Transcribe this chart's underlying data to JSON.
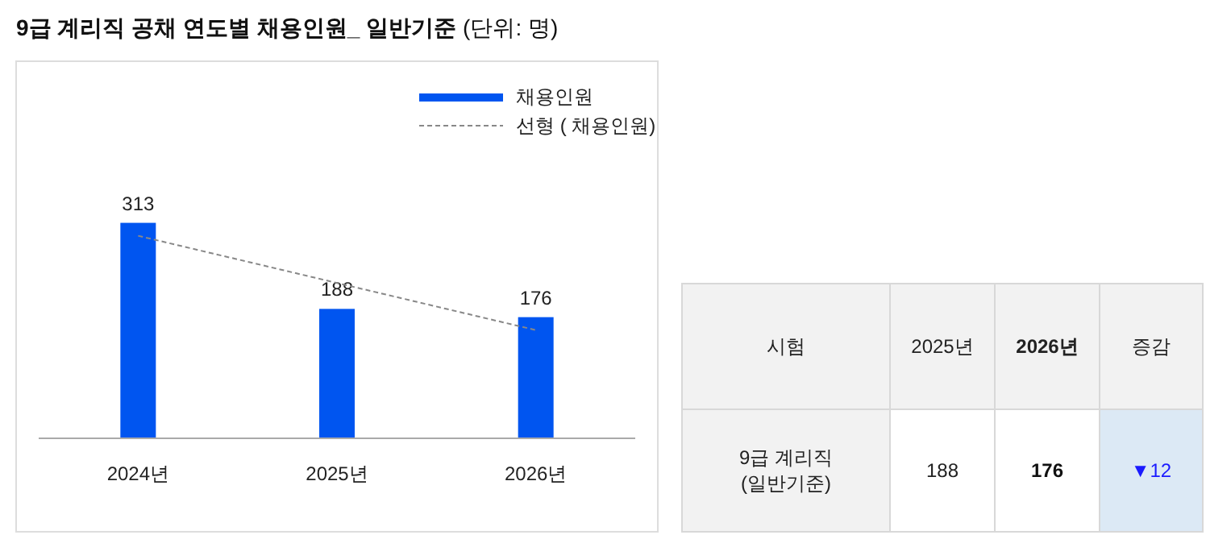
{
  "chart_data": [
    {
      "type": "bar",
      "title": "9급 계리직 공채 연도별 채용인원_ 일반기준",
      "subtitle": "(단위: 명)",
      "categories": [
        "2024년",
        "2025년",
        "2026년"
      ],
      "legend": "top right",
      "series": [
        {
          "name": "채용인원",
          "type": "bar",
          "color": "#0055f0",
          "values": [
            313,
            188,
            176
          ],
          "value_labels": [
            "313",
            "188",
            "176"
          ]
        },
        {
          "name": "선형 ( 채용인원)",
          "type": "line",
          "color": "#888888",
          "line_style": "dashed",
          "values": [
            294.2,
            225.7,
            157.2
          ]
        }
      ]
    },
    {
      "type": "other",
      "categories": [
        "시험",
        "2025년",
        "2026년",
        "증감"
      ],
      "cell_labels": [
        [
          "9급 계리직\n(일반기준)",
          "188",
          "176",
          "▼12"
        ]
      ]
    }
  ]
}
